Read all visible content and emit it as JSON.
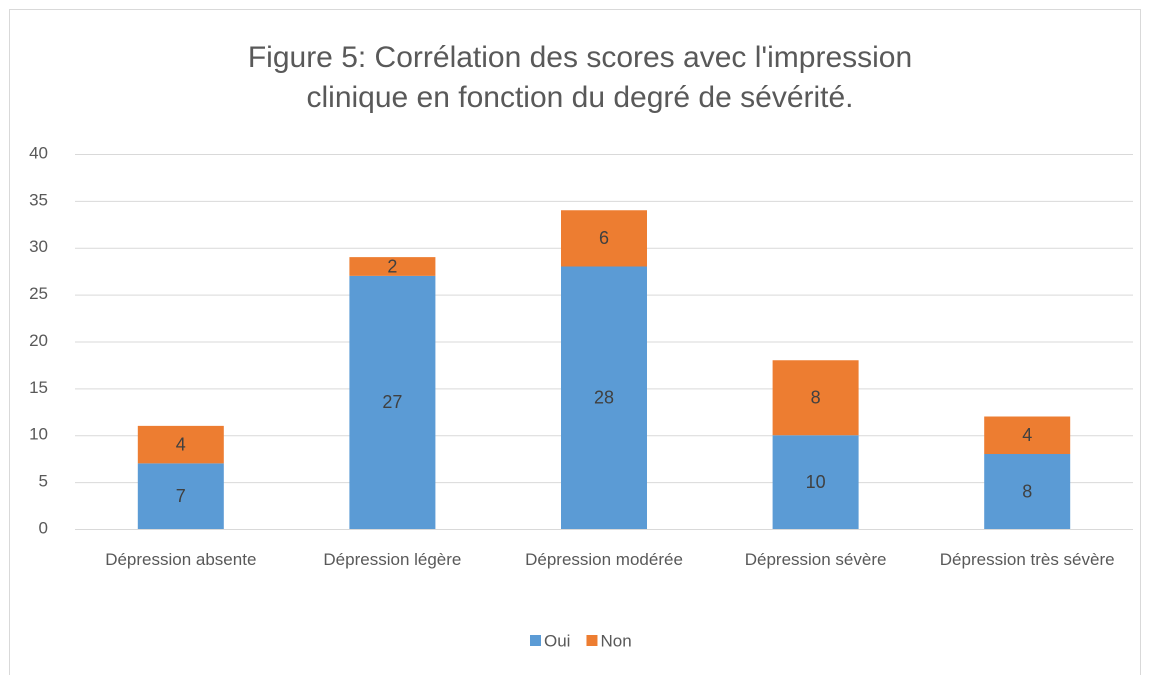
{
  "chart_data": {
    "type": "stacked_bar",
    "title": "Figure 5: Corrélation des scores avec l'impression clinique en fonction du degré de sévérité.",
    "categories": [
      "Dépression absente",
      "Dépression légère",
      "Dépression modérée",
      "Dépression sévère",
      "Dépression très sévère"
    ],
    "series": [
      {
        "name": "Oui",
        "color": "#5b9bd5",
        "values": [
          7,
          27,
          28,
          10,
          8
        ]
      },
      {
        "name": "Non",
        "color": "#ed7d31",
        "values": [
          4,
          2,
          6,
          8,
          4
        ]
      }
    ],
    "ylim": [
      0,
      40
    ],
    "yticks": [
      0,
      5,
      10,
      15,
      20,
      25,
      30,
      35,
      40
    ],
    "grid": true,
    "legend": "bottom"
  }
}
